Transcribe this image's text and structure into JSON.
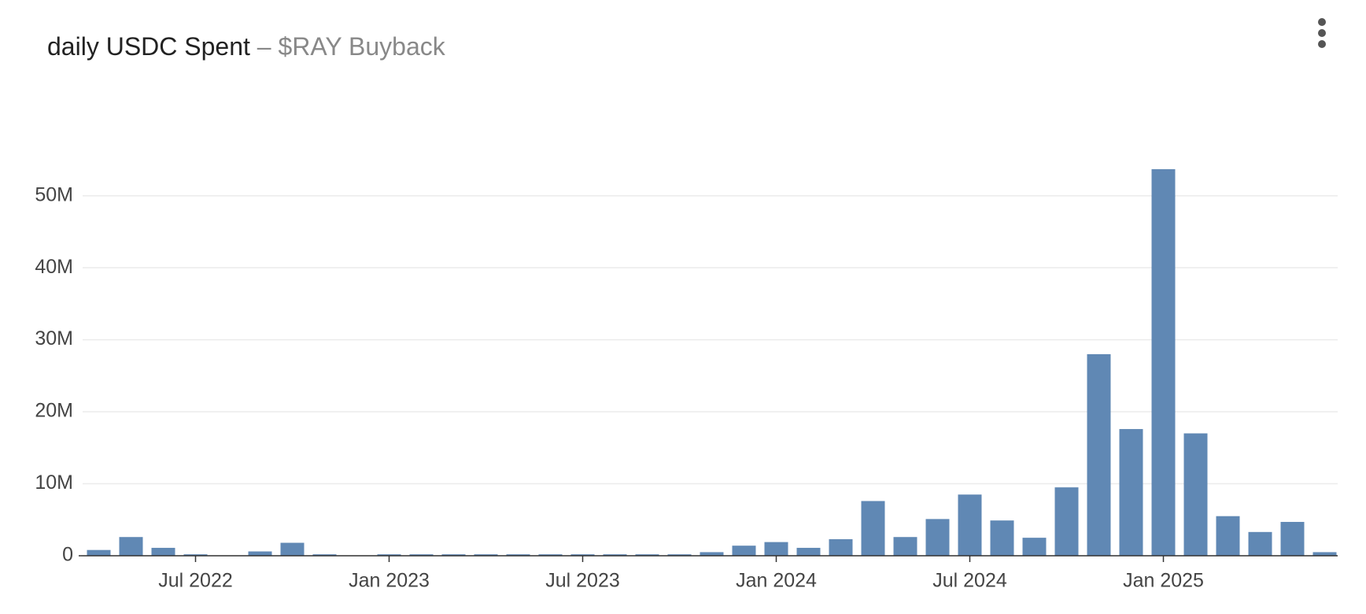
{
  "chart_data": {
    "type": "bar",
    "title": "daily USDC Spent",
    "subtitle": "– $RAY Buyback",
    "categories": [
      "Apr 2022",
      "May 2022",
      "Jun 2022",
      "Jul 2022",
      "Aug 2022",
      "Sep 2022",
      "Oct 2022",
      "Nov 2022",
      "Dec 2022",
      "Jan 2023",
      "Feb 2023",
      "Mar 2023",
      "Apr 2023",
      "May 2023",
      "Jun 2023",
      "Jul 2023",
      "Aug 2023",
      "Sep 2023",
      "Oct 2023",
      "Nov 2023",
      "Dec 2023",
      "Jan 2024",
      "Feb 2024",
      "Mar 2024",
      "Apr 2024",
      "May 2024",
      "Jun 2024",
      "Jul 2024",
      "Aug 2024",
      "Sep 2024",
      "Oct 2024",
      "Nov 2024",
      "Dec 2024",
      "Jan 2025",
      "Feb 2025",
      "Mar 2025",
      "Apr 2025",
      "May 2025",
      "Jun 2025"
    ],
    "values": [
      800000,
      2600000,
      1100000,
      200000,
      0,
      600000,
      1800000,
      200000,
      0,
      200000,
      200000,
      200000,
      200000,
      200000,
      200000,
      200000,
      200000,
      200000,
      200000,
      500000,
      1400000,
      1900000,
      1100000,
      2300000,
      7600000,
      2600000,
      5100000,
      8500000,
      4900000,
      2500000,
      9500000,
      28000000,
      17600000,
      53700000,
      17000000,
      5500000,
      3300000,
      4700000,
      500000
    ],
    "color": "#6088b4",
    "ylim": [
      0,
      55000000
    ],
    "yticks": [
      0,
      {
        "value": 10000000,
        "label": "10M"
      },
      {
        "value": 20000000,
        "label": "20M"
      },
      {
        "value": 30000000,
        "label": "30M"
      },
      {
        "value": 40000000,
        "label": "40M"
      },
      {
        "value": 50000000,
        "label": "50M"
      }
    ],
    "xticks": [
      "Jul 2022",
      "Jan 2023",
      "Jul 2023",
      "Jan 2024",
      "Jul 2024",
      "Jan 2025"
    ],
    "grid": true
  }
}
